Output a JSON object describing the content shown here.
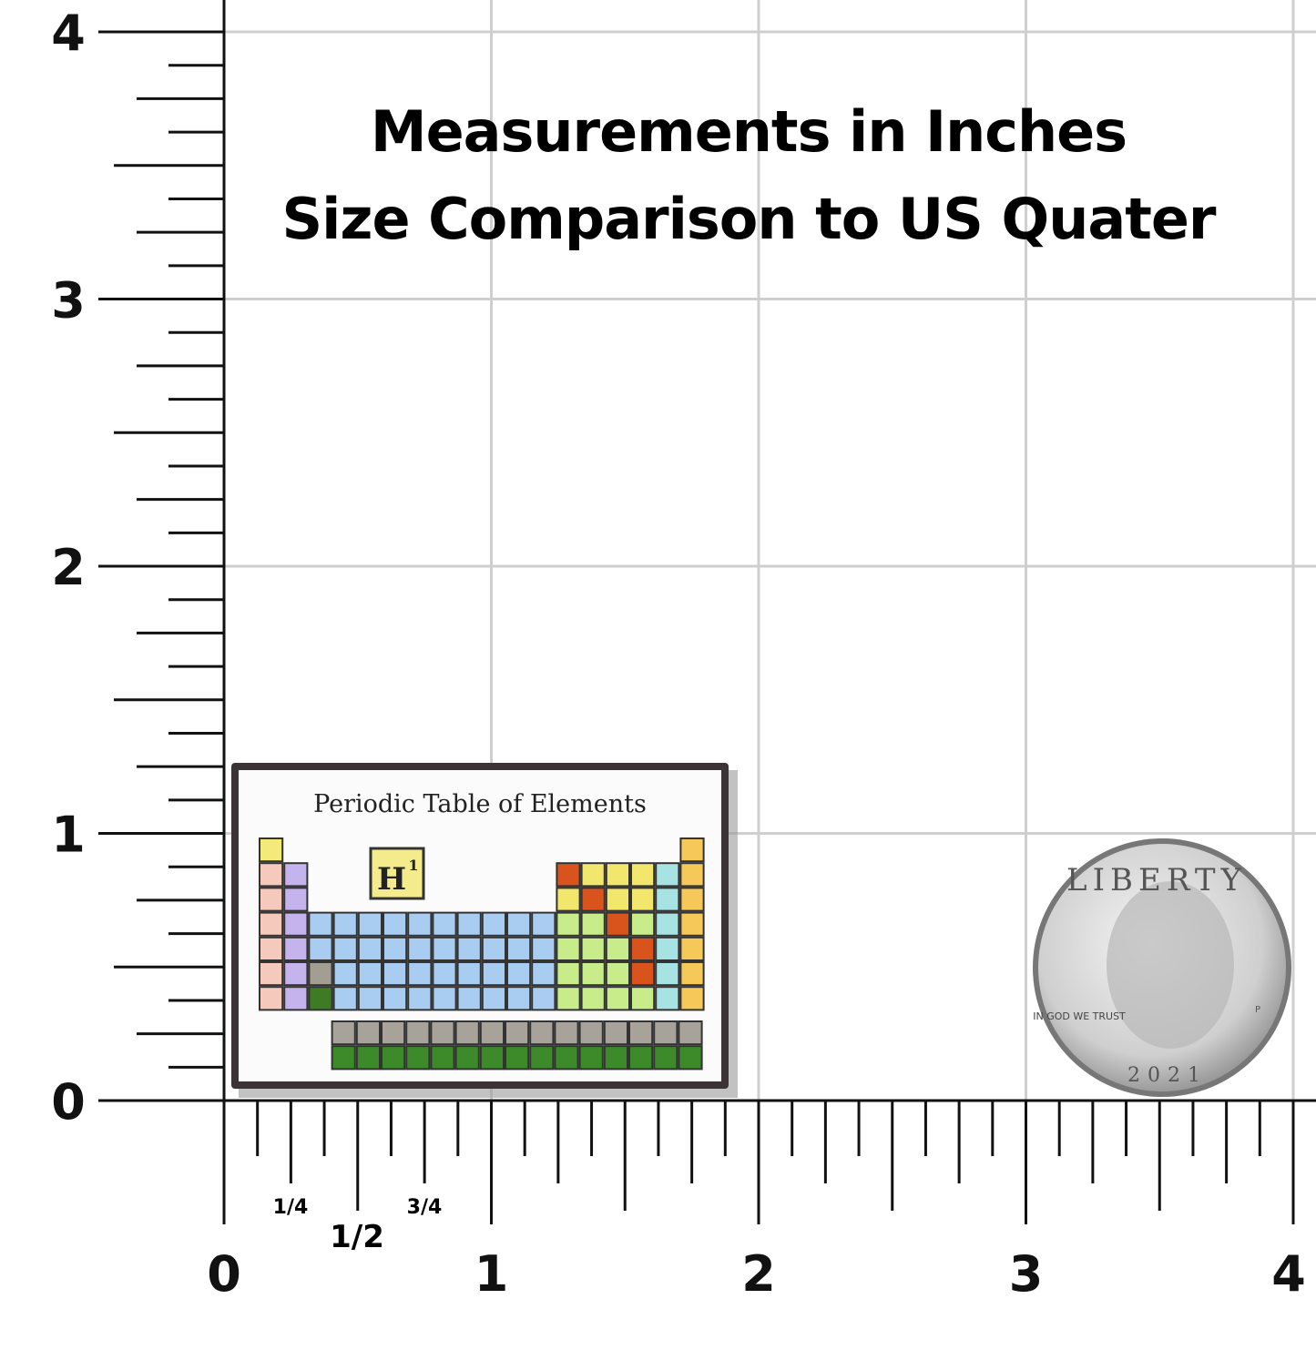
{
  "header": {
    "title": "Measurements in Inches",
    "subtitle": "Size Comparison to US Quater"
  },
  "ruler": {
    "y_labels": [
      "0",
      "1",
      "2",
      "3",
      "4"
    ],
    "x_labels": [
      "0",
      "1",
      "2",
      "3",
      "4"
    ],
    "x_fractions": [
      "1/4",
      "1/2",
      "3/4"
    ]
  },
  "pin": {
    "title": "Periodic Table of Elements",
    "symbol": "H",
    "number": "1"
  },
  "coin": {
    "motto_top": "LIBERTY",
    "motto_left": "IN GOD WE TRUST",
    "year": "2021",
    "mint": "P"
  }
}
